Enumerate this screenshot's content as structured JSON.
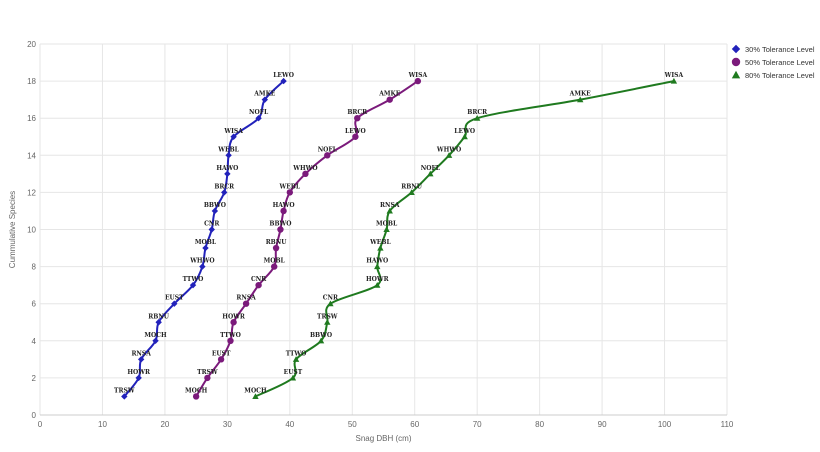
{
  "chart_data": {
    "type": "line",
    "title": "",
    "xlabel": "Snag DBH (cm)",
    "ylabel": "Cummulative Species",
    "xlim": [
      0,
      110
    ],
    "ylim": [
      0,
      20
    ],
    "xticks": [
      0,
      10,
      20,
      30,
      40,
      50,
      60,
      70,
      80,
      90,
      100,
      110
    ],
    "yticks": [
      0,
      2,
      4,
      6,
      8,
      10,
      12,
      14,
      16,
      18,
      20
    ],
    "grid": true,
    "legend_position": "top-right",
    "series": [
      {
        "name": "30% Tolerance Level",
        "color": "#2222bb",
        "marker": "diamond",
        "points": [
          {
            "x": 13.5,
            "y": 1,
            "label": "TRSW"
          },
          {
            "x": 15.8,
            "y": 2,
            "label": "HOWR"
          },
          {
            "x": 16.2,
            "y": 3,
            "label": "RNSA"
          },
          {
            "x": 18.5,
            "y": 4,
            "label": "MOCH"
          },
          {
            "x": 19.0,
            "y": 5,
            "label": "RBNU"
          },
          {
            "x": 21.5,
            "y": 6,
            "label": "EUST"
          },
          {
            "x": 24.5,
            "y": 7,
            "label": "TTWO"
          },
          {
            "x": 26.0,
            "y": 8,
            "label": "WHWO"
          },
          {
            "x": 26.5,
            "y": 9,
            "label": "MOBL"
          },
          {
            "x": 27.5,
            "y": 10,
            "label": "CNR"
          },
          {
            "x": 28.0,
            "y": 11,
            "label": "BBWO"
          },
          {
            "x": 29.5,
            "y": 12,
            "label": "BRCR"
          },
          {
            "x": 30.0,
            "y": 13,
            "label": "HAWO"
          },
          {
            "x": 30.2,
            "y": 14,
            "label": "WEBL"
          },
          {
            "x": 31.0,
            "y": 15,
            "label": "WISA"
          },
          {
            "x": 35.0,
            "y": 16,
            "label": "NOFL"
          },
          {
            "x": 36.0,
            "y": 17,
            "label": "AMKE"
          },
          {
            "x": 39.0,
            "y": 18,
            "label": "LEWO"
          }
        ]
      },
      {
        "name": "50% Tolerance Level",
        "color": "#7b1a7b",
        "marker": "circle",
        "points": [
          {
            "x": 25.0,
            "y": 1,
            "label": "MOCH"
          },
          {
            "x": 26.8,
            "y": 2,
            "label": "TRSW"
          },
          {
            "x": 29.0,
            "y": 3,
            "label": "EUST"
          },
          {
            "x": 30.5,
            "y": 4,
            "label": "TTWO"
          },
          {
            "x": 31.0,
            "y": 5,
            "label": "HOWR"
          },
          {
            "x": 33.0,
            "y": 6,
            "label": "RNSA"
          },
          {
            "x": 35.0,
            "y": 7,
            "label": "CNR"
          },
          {
            "x": 37.5,
            "y": 8,
            "label": "MOBL"
          },
          {
            "x": 37.8,
            "y": 9,
            "label": "RBNU"
          },
          {
            "x": 38.5,
            "y": 10,
            "label": "BBWO"
          },
          {
            "x": 39.0,
            "y": 11,
            "label": "HAWO"
          },
          {
            "x": 40.0,
            "y": 12,
            "label": "WEBL"
          },
          {
            "x": 42.5,
            "y": 13,
            "label": "WHWO"
          },
          {
            "x": 46.0,
            "y": 14,
            "label": "NOFL"
          },
          {
            "x": 50.5,
            "y": 15,
            "label": "LEWO"
          },
          {
            "x": 50.8,
            "y": 16,
            "label": "BRCR"
          },
          {
            "x": 56.0,
            "y": 17,
            "label": "AMKE"
          },
          {
            "x": 60.5,
            "y": 18,
            "label": "WISA"
          }
        ]
      },
      {
        "name": "80% Tolerance Level",
        "color": "#1f7a1f",
        "marker": "triangle",
        "points": [
          {
            "x": 34.5,
            "y": 1,
            "label": "MOCH"
          },
          {
            "x": 40.5,
            "y": 2,
            "label": "EUST"
          },
          {
            "x": 41.0,
            "y": 3,
            "label": "TTWO"
          },
          {
            "x": 45.0,
            "y": 4,
            "label": "BBWO"
          },
          {
            "x": 46.0,
            "y": 5,
            "label": "TRSW"
          },
          {
            "x": 46.5,
            "y": 6,
            "label": "CNR"
          },
          {
            "x": 54.0,
            "y": 7,
            "label": "HOWR"
          },
          {
            "x": 54.0,
            "y": 8,
            "label": "HAWO"
          },
          {
            "x": 54.5,
            "y": 9,
            "label": "WEBL"
          },
          {
            "x": 55.5,
            "y": 10,
            "label": "MOBL"
          },
          {
            "x": 56.0,
            "y": 11,
            "label": "RNSA"
          },
          {
            "x": 59.5,
            "y": 12,
            "label": "RBNU"
          },
          {
            "x": 62.5,
            "y": 13,
            "label": "NOFL"
          },
          {
            "x": 65.5,
            "y": 14,
            "label": "WHWO"
          },
          {
            "x": 68.0,
            "y": 15,
            "label": "LEWO"
          },
          {
            "x": 70.0,
            "y": 16,
            "label": "BRCR"
          },
          {
            "x": 86.5,
            "y": 17,
            "label": "AMKE"
          },
          {
            "x": 101.5,
            "y": 18,
            "label": "WISA"
          }
        ]
      }
    ]
  }
}
